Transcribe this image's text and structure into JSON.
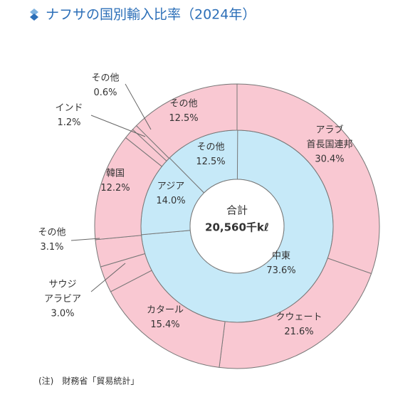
{
  "chart_data": {
    "type": "donut",
    "title": "ナフサの国別輸入比率（2024年）",
    "center_label": [
      "合計",
      "20,560千kℓ"
    ],
    "note": "(注)　財務省「貿易統計」",
    "rings": [
      {
        "color": "#c6e9f8",
        "labels": [
          [
            "中東"
          ],
          [
            "アジア"
          ],
          [
            "その他"
          ]
        ],
        "values": [
          73.6,
          14.0,
          12.5
        ],
        "value_labels": [
          "73.6%",
          "14.0%",
          "12.5%"
        ]
      },
      {
        "color": "#f9c8d2",
        "labels": [
          [
            "アラブ",
            "首長国連邦"
          ],
          [
            "クウェート"
          ],
          [
            "カタール"
          ],
          [
            "サウジ",
            "アラビア"
          ],
          [
            "その他"
          ],
          [
            "韓国"
          ],
          [
            "インド"
          ],
          [
            "その他"
          ],
          [
            "その他"
          ]
        ],
        "values": [
          30.4,
          21.6,
          15.4,
          3.0,
          3.1,
          12.2,
          1.2,
          0.6,
          12.5
        ],
        "value_labels": [
          "30.4%",
          "21.6%",
          "15.4%",
          "3.0%",
          "3.1%",
          "12.2%",
          "1.2%",
          "0.6%",
          "12.5%"
        ]
      }
    ]
  }
}
